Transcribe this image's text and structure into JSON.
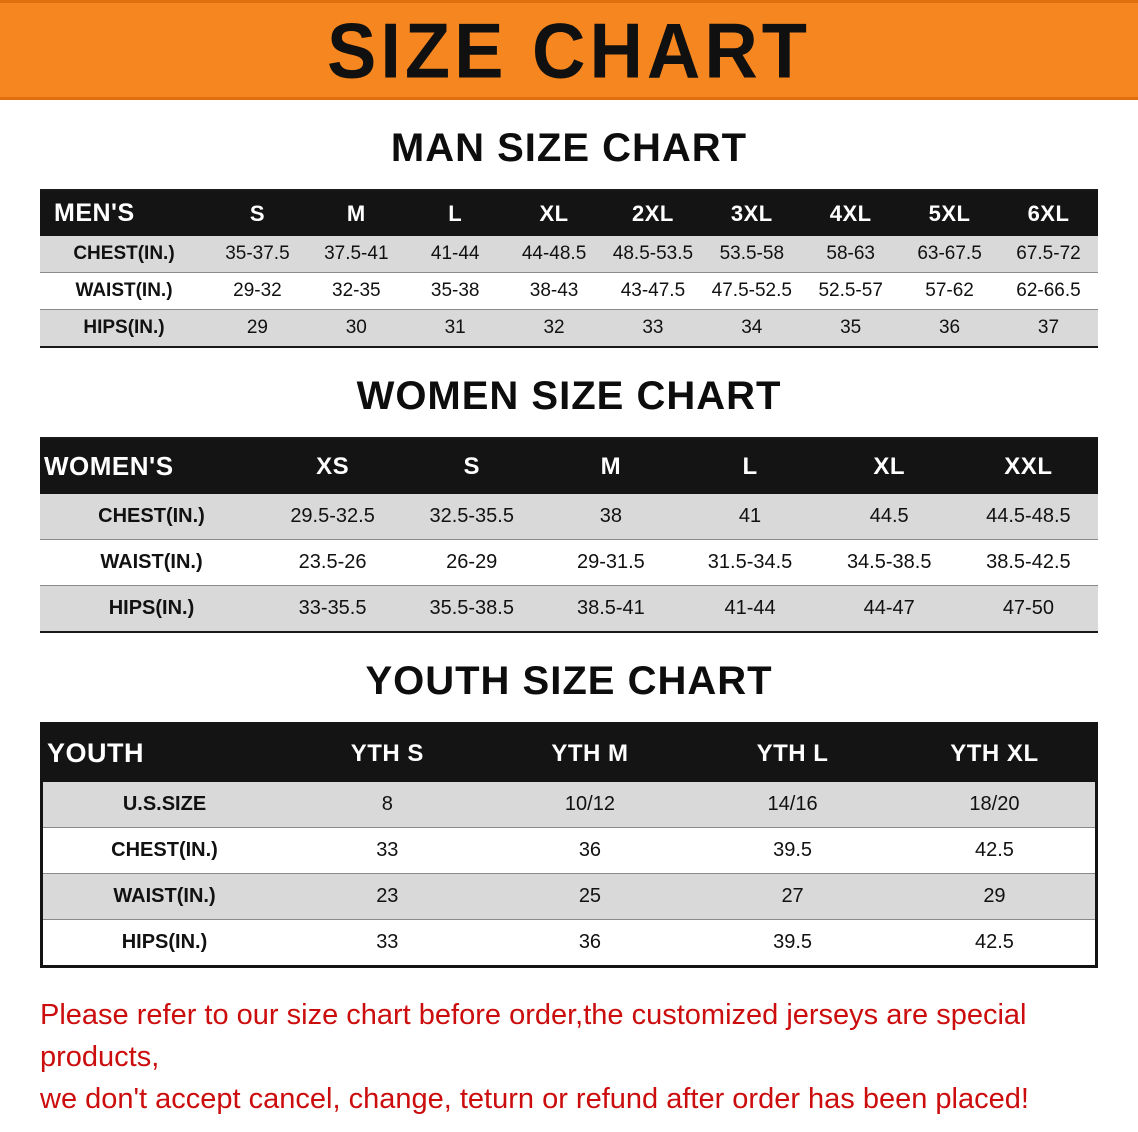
{
  "banner": {
    "title": "SIZE CHART",
    "bg_color": "#f6861f"
  },
  "sections": [
    {
      "id": "men",
      "heading": "MAN SIZE CHART",
      "table": {
        "header": [
          "MEN'S",
          "S",
          "M",
          "L",
          "XL",
          "2XL",
          "3XL",
          "4XL",
          "5XL",
          "6XL"
        ],
        "rows": [
          {
            "label": "CHEST(IN.)",
            "values": [
              "35-37.5",
              "37.5-41",
              "41-44",
              "44-48.5",
              "48.5-53.5",
              "53.5-58",
              "58-63",
              "63-67.5",
              "67.5-72"
            ]
          },
          {
            "label": "WAIST(IN.)",
            "values": [
              "29-32",
              "32-35",
              "35-38",
              "38-43",
              "43-47.5",
              "47.5-52.5",
              "52.5-57",
              "57-62",
              "62-66.5"
            ]
          },
          {
            "label": "HIPS(IN.)",
            "values": [
              "29",
              "30",
              "31",
              "32",
              "33",
              "34",
              "35",
              "36",
              "37"
            ]
          }
        ]
      }
    },
    {
      "id": "women",
      "heading": "WOMEN SIZE CHART",
      "table": {
        "header": [
          "WOMEN'S",
          "XS",
          "S",
          "M",
          "L",
          "XL",
          "XXL"
        ],
        "rows": [
          {
            "label": "CHEST(IN.)",
            "values": [
              "29.5-32.5",
              "32.5-35.5",
              "38",
              "41",
              "44.5",
              "44.5-48.5"
            ]
          },
          {
            "label": "WAIST(IN.)",
            "values": [
              "23.5-26",
              "26-29",
              "29-31.5",
              "31.5-34.5",
              "34.5-38.5",
              "38.5-42.5"
            ]
          },
          {
            "label": "HIPS(IN.)",
            "values": [
              "33-35.5",
              "35.5-38.5",
              "38.5-41",
              "41-44",
              "44-47",
              "47-50"
            ]
          }
        ]
      }
    },
    {
      "id": "youth",
      "heading": "YOUTH SIZE CHART",
      "table": {
        "header": [
          "YOUTH",
          "YTH S",
          "YTH M",
          "YTH L",
          "YTH XL"
        ],
        "rows": [
          {
            "label": "U.S.SIZE",
            "values": [
              "8",
              "10/12",
              "14/16",
              "18/20"
            ]
          },
          {
            "label": "CHEST(IN.)",
            "values": [
              "33",
              "36",
              "39.5",
              "42.5"
            ]
          },
          {
            "label": "WAIST(IN.)",
            "values": [
              "23",
              "25",
              "27",
              "29"
            ]
          },
          {
            "label": "HIPS(IN.)",
            "values": [
              "33",
              "36",
              "39.5",
              "42.5"
            ]
          }
        ]
      }
    }
  ],
  "footer": {
    "line1": "Please refer to our size chart before order,the customized jerseys are special products,",
    "line2": "we don't accept cancel, change, teturn or refund after order has been placed!",
    "text_color": "#cc0d0d"
  }
}
